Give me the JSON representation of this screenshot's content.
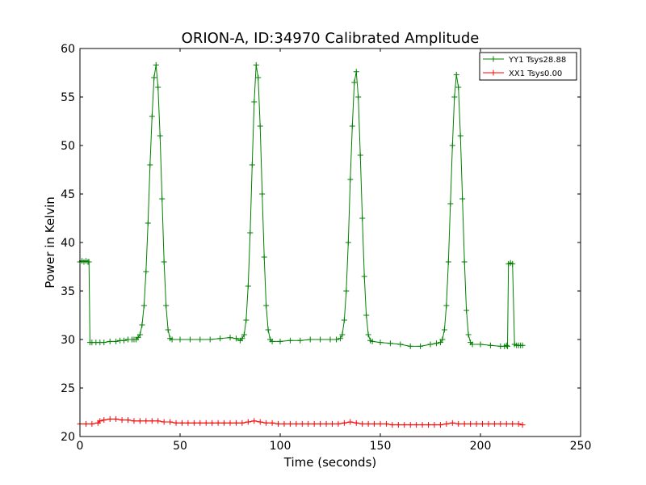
{
  "chart_data": {
    "type": "line",
    "title": "ORION-A, ID:34970 Calibrated Amplitude",
    "xlabel": "Time (seconds)",
    "ylabel": "Power in Kelvin",
    "xlim": [
      0,
      250
    ],
    "ylim": [
      20,
      60
    ],
    "xticks": [
      0,
      50,
      100,
      150,
      200,
      250
    ],
    "yticks": [
      20,
      25,
      30,
      35,
      40,
      45,
      50,
      55,
      60
    ],
    "grid": false,
    "legend_position": "top-right",
    "series": [
      {
        "name": "YY1 Tsys28.88",
        "color": "#008000",
        "marker": "+",
        "x": [
          0,
          1,
          2,
          3,
          4,
          4.5,
          5,
          6,
          8,
          10,
          12,
          15,
          18,
          20,
          22,
          24,
          26,
          27,
          28,
          29,
          30,
          31,
          32,
          33,
          34,
          35,
          36,
          37,
          38,
          39,
          40,
          41,
          42,
          43,
          44,
          45,
          46,
          50,
          55,
          60,
          65,
          70,
          75,
          78,
          80,
          81,
          82,
          83,
          84,
          85,
          86,
          87,
          88,
          89,
          90,
          91,
          92,
          93,
          94,
          95,
          96,
          100,
          105,
          110,
          115,
          120,
          125,
          128,
          130,
          131,
          132,
          133,
          134,
          135,
          136,
          137,
          138,
          139,
          140,
          141,
          142,
          143,
          144,
          145,
          146,
          150,
          155,
          160,
          165,
          170,
          175,
          178,
          180,
          181,
          182,
          183,
          184,
          185,
          186,
          187,
          188,
          189,
          190,
          191,
          192,
          193,
          194,
          195,
          196,
          200,
          205,
          210,
          212,
          213,
          213.5,
          214,
          215,
          216,
          217,
          218,
          219,
          220,
          221
        ],
        "values": [
          38.0,
          38.1,
          38.0,
          38.1,
          38.0,
          38.0,
          29.7,
          29.7,
          29.7,
          29.7,
          29.7,
          29.8,
          29.8,
          29.9,
          29.9,
          30.0,
          30.0,
          30.0,
          30.0,
          30.2,
          30.5,
          31.5,
          33.5,
          37.0,
          42.0,
          48.0,
          53.0,
          57.0,
          58.3,
          56.0,
          51.0,
          44.5,
          38.0,
          33.5,
          31.0,
          30.1,
          30.0,
          30.0,
          30.0,
          30.0,
          30.0,
          30.1,
          30.2,
          30.1,
          29.9,
          30.1,
          30.5,
          32.0,
          35.5,
          41.0,
          48.0,
          54.5,
          58.3,
          57.0,
          52.0,
          45.0,
          38.5,
          33.5,
          31.0,
          30.0,
          29.8,
          29.8,
          29.9,
          29.9,
          30.0,
          30.0,
          30.0,
          30.0,
          30.1,
          30.5,
          32.0,
          35.0,
          40.0,
          46.5,
          52.0,
          56.5,
          57.6,
          55.0,
          49.0,
          42.5,
          36.5,
          32.5,
          30.5,
          29.9,
          29.8,
          29.7,
          29.6,
          29.5,
          29.3,
          29.3,
          29.5,
          29.6,
          29.7,
          30.0,
          31.0,
          33.5,
          38.0,
          44.0,
          50.0,
          55.0,
          57.3,
          56.0,
          51.0,
          44.5,
          38.0,
          33.0,
          30.5,
          29.7,
          29.5,
          29.5,
          29.4,
          29.3,
          29.3,
          29.4,
          29.3,
          37.8,
          37.9,
          37.8,
          29.5,
          29.4,
          29.4,
          29.4,
          29.4
        ]
      },
      {
        "name": "XX1 Tsys0.00",
        "color": "#ff0000",
        "marker": "+",
        "x": [
          0,
          3,
          6,
          9,
          10,
          12,
          15,
          18,
          21,
          24,
          27,
          30,
          33,
          36,
          39,
          42,
          45,
          48,
          51,
          54,
          57,
          60,
          63,
          66,
          69,
          72,
          75,
          78,
          81,
          84,
          87,
          90,
          93,
          96,
          99,
          102,
          105,
          108,
          111,
          114,
          117,
          120,
          123,
          126,
          129,
          132,
          135,
          138,
          141,
          144,
          147,
          150,
          153,
          156,
          159,
          162,
          165,
          168,
          171,
          174,
          177,
          180,
          183,
          186,
          189,
          192,
          195,
          198,
          201,
          204,
          207,
          210,
          213,
          216,
          219,
          221
        ],
        "values": [
          21.3,
          21.3,
          21.3,
          21.4,
          21.6,
          21.7,
          21.8,
          21.8,
          21.7,
          21.7,
          21.6,
          21.6,
          21.6,
          21.6,
          21.6,
          21.5,
          21.5,
          21.4,
          21.4,
          21.4,
          21.4,
          21.4,
          21.4,
          21.4,
          21.4,
          21.4,
          21.4,
          21.4,
          21.4,
          21.5,
          21.6,
          21.5,
          21.4,
          21.4,
          21.3,
          21.3,
          21.3,
          21.3,
          21.3,
          21.3,
          21.3,
          21.3,
          21.3,
          21.3,
          21.3,
          21.4,
          21.5,
          21.4,
          21.3,
          21.3,
          21.3,
          21.3,
          21.3,
          21.2,
          21.2,
          21.2,
          21.2,
          21.2,
          21.2,
          21.2,
          21.2,
          21.2,
          21.3,
          21.4,
          21.3,
          21.3,
          21.3,
          21.3,
          21.3,
          21.3,
          21.3,
          21.3,
          21.3,
          21.3,
          21.3,
          21.2
        ]
      }
    ]
  }
}
